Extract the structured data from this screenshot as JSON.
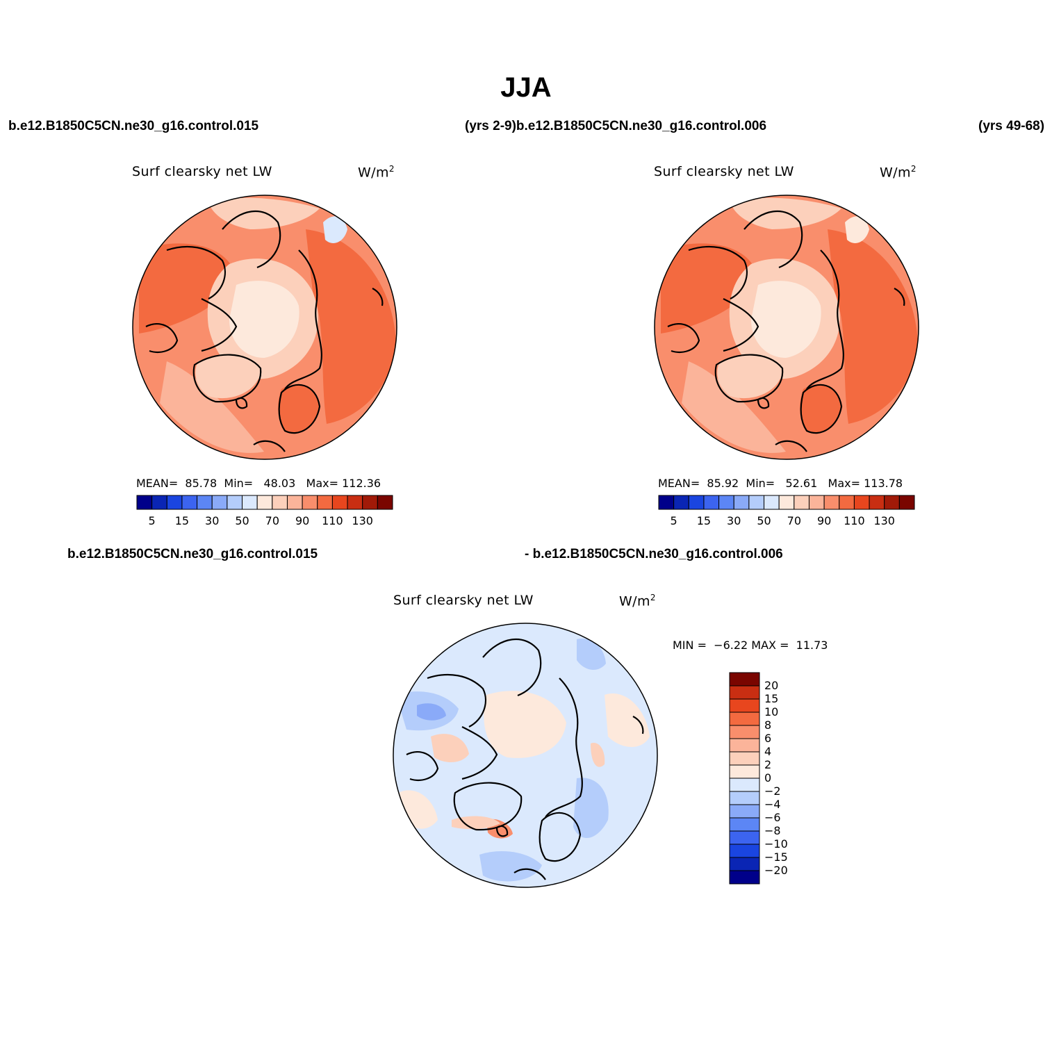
{
  "main_title": "JJA",
  "top_left_header": "b.e12.B1850C5CN.ne30_g16.control.015",
  "top_mid_header": "(yrs 2-9)b.e12.B1850C5CN.ne30_g16.control.006",
  "top_right_header": "(yrs 49-68)",
  "diff_left_header": "b.e12.B1850C5CN.ne30_g16.control.015",
  "diff_right_header": "- b.e12.B1850C5CN.ne30_g16.control.006",
  "panels": [
    {
      "variable": "Surf clearsky net LW",
      "units": "W/m",
      "units_sup": "2",
      "stats": {
        "mean_label": "MEAN=",
        "mean": "85.78",
        "min_label": "Min=",
        "min": "48.03",
        "max_label": "Max=",
        "max": "112.36"
      }
    },
    {
      "variable": "Surf clearsky net LW",
      "units": "W/m",
      "units_sup": "2",
      "stats": {
        "mean_label": "MEAN=",
        "mean": "85.92",
        "min_label": "Min=",
        "min": "52.61",
        "max_label": "Max=",
        "max": "113.78"
      }
    },
    {
      "variable": "Surf clearsky net LW",
      "units": "W/m",
      "units_sup": "2",
      "stats": {
        "min_label": "MIN =",
        "min": "−6.22",
        "max_label": "MAX =",
        "max": "11.73"
      }
    }
  ],
  "colorbar_abs": {
    "colors": [
      "#00008a",
      "#0a25b4",
      "#1a45e0",
      "#3c64f0",
      "#5c86f5",
      "#8aaaf8",
      "#b4cdfb",
      "#dbe9fd",
      "#fde9dc",
      "#fcd0bb",
      "#fbb49a",
      "#f98e6c",
      "#f36a40",
      "#e8461e",
      "#c92e12",
      "#a11a08",
      "#7a0500"
    ],
    "tick_labels": [
      "5",
      "15",
      "30",
      "50",
      "70",
      "90",
      "110",
      "130"
    ]
  },
  "colorbar_diff": {
    "colors": [
      "#00008a",
      "#0a25b4",
      "#1a45e0",
      "#3c64f0",
      "#5c86f5",
      "#8aaaf8",
      "#b4cdfb",
      "#dbe9fd",
      "#fde9dc",
      "#fcd0bb",
      "#fbb49a",
      "#f98e6c",
      "#f36a40",
      "#e8461e",
      "#c92e12",
      "#7a0500"
    ],
    "tick_labels": [
      "20",
      "15",
      "10",
      "8",
      "6",
      "4",
      "2",
      "0",
      "−2",
      "−4",
      "−6",
      "−8",
      "−10",
      "−15",
      "−20"
    ]
  },
  "map_colors": {
    "abs_base": "#f98e6c",
    "abs_dark": "#f36a40",
    "abs_mid": "#fbb49a",
    "abs_light": "#fcd0bb",
    "abs_pale": "#fde9dc",
    "abs_blue": "#dbe9fd",
    "diff_base": "#dbe9fd",
    "diff_blue": "#b4cdfb",
    "diff_blue2": "#8aaaf8",
    "diff_red": "#fcd0bb",
    "diff_red2": "#f98e6c",
    "diff_pale": "#fde9dc"
  }
}
